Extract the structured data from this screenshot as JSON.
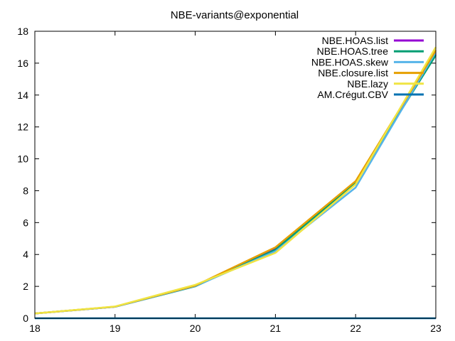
{
  "chart_data": {
    "type": "line",
    "title": "NBE-variants@exponential",
    "xlabel": "",
    "ylabel": "",
    "x": [
      18,
      19,
      20,
      21,
      22,
      23
    ],
    "xlim": [
      18,
      23
    ],
    "ylim": [
      0,
      18
    ],
    "xticks": [
      "18",
      "19",
      "20",
      "21",
      "22",
      "23"
    ],
    "yticks": [
      "0",
      "2",
      "4",
      "6",
      "8",
      "10",
      "12",
      "14",
      "16",
      "18"
    ],
    "grid": false,
    "legend_position": "top-right",
    "series": [
      {
        "name": "NBE.HOAS.list",
        "color": "#9400d3",
        "values": [
          0.3,
          0.72,
          2.02,
          4.35,
          8.55,
          16.6
        ]
      },
      {
        "name": "NBE.HOAS.tree",
        "color": "#009e73",
        "values": [
          0.3,
          0.72,
          2.0,
          4.3,
          8.5,
          16.5
        ]
      },
      {
        "name": "NBE.HOAS.skew",
        "color": "#56b4e9",
        "values": [
          0.3,
          0.72,
          2.02,
          4.2,
          8.2,
          16.7
        ]
      },
      {
        "name": "NBE.closure.list",
        "color": "#e69f00",
        "values": [
          0.3,
          0.73,
          2.05,
          4.45,
          8.6,
          16.8
        ]
      },
      {
        "name": "NBE.lazy",
        "color": "#f0e442",
        "values": [
          0.3,
          0.74,
          2.1,
          4.1,
          8.4,
          17.0
        ]
      },
      {
        "name": "AM.Crégut.CBV",
        "color": "#0072b2",
        "values": [
          0.0,
          0.0,
          0.0,
          0.0,
          0.0,
          0.0
        ]
      }
    ]
  }
}
